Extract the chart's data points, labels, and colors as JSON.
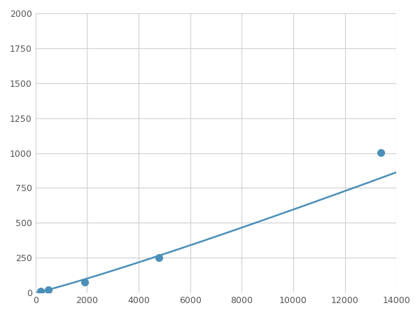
{
  "x_points": [
    200,
    500,
    1900,
    4800,
    13400
  ],
  "y_points": [
    10,
    20,
    75,
    250,
    1005
  ],
  "line_color": "#4a90b8",
  "marker_color": "#4a90b8",
  "marker_size": 7,
  "line_width": 1.8,
  "xlim": [
    0,
    14000
  ],
  "ylim": [
    0,
    2000
  ],
  "xticks": [
    0,
    2000,
    4000,
    6000,
    8000,
    10000,
    12000,
    14000
  ],
  "yticks": [
    0,
    250,
    500,
    750,
    1000,
    1250,
    1500,
    1750,
    2000
  ],
  "xticklabels": [
    "0",
    "2000",
    "4000",
    "6000",
    "8000",
    "10000",
    "12000",
    "14000"
  ],
  "yticklabels": [
    "0",
    "250",
    "500",
    "750",
    "1000",
    "1250",
    "1500",
    "1750",
    "2000"
  ],
  "grid_color": "#d0d0d0",
  "background_color": "#ffffff",
  "tick_fontsize": 9,
  "tick_color": "#555555"
}
